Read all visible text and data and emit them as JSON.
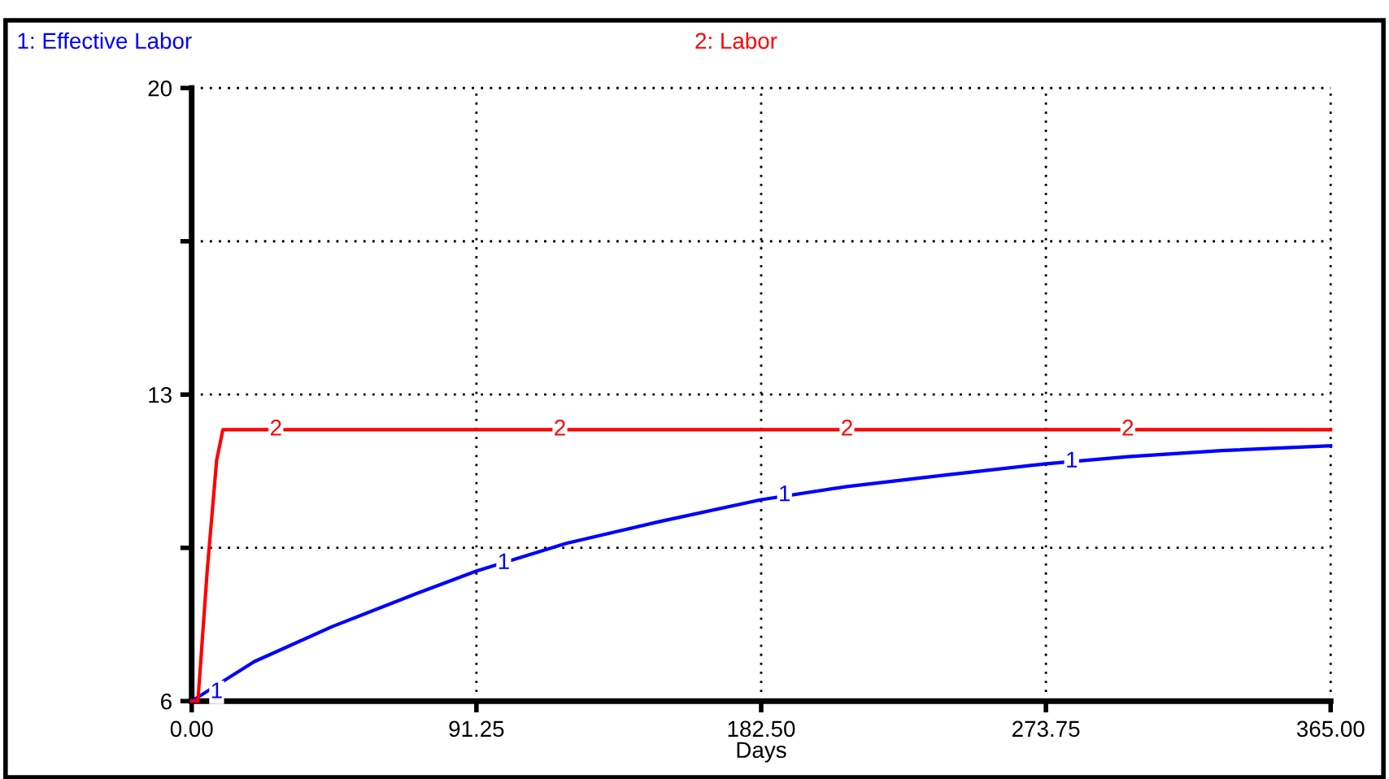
{
  "chart_data": {
    "type": "line",
    "xlabel": "Days",
    "series": [
      {
        "name": "1: Effective Labor",
        "color": "#0000ff",
        "x": [
          0,
          20,
          45,
          70,
          91.25,
          120,
          150,
          182.5,
          210,
          240,
          273.75,
          300,
          330,
          365
        ],
        "values": [
          6.0,
          6.9,
          7.7,
          8.4,
          8.97,
          9.6,
          10.1,
          10.6,
          10.9,
          11.15,
          11.42,
          11.58,
          11.72,
          11.83
        ]
      },
      {
        "name": "2: Labor",
        "color": "#ff0000",
        "x": [
          0,
          2,
          5,
          8,
          10,
          365
        ],
        "values": [
          6,
          6,
          9,
          11.5,
          12.2,
          12.2
        ]
      }
    ],
    "annotations": [
      {
        "text": "1",
        "x": 8,
        "y": 6.2
      },
      {
        "text": "1",
        "x": 100,
        "y": 9.15
      },
      {
        "text": "1",
        "x": 190,
        "y": 10.7
      },
      {
        "text": "1",
        "x": 282,
        "y": 11.47
      },
      {
        "text": "2",
        "x": 27,
        "y": 12.2
      },
      {
        "text": "2",
        "x": 118,
        "y": 12.2
      },
      {
        "text": "2",
        "x": 210,
        "y": 12.2
      },
      {
        "text": "2",
        "x": 300,
        "y": 12.2
      }
    ],
    "xlim": [
      0,
      365
    ],
    "ylim": [
      6,
      20
    ],
    "xticks": [
      {
        "value": 0,
        "label": "0.00"
      },
      {
        "value": 91.25,
        "label": "91.25"
      },
      {
        "value": 182.5,
        "label": "182.50"
      },
      {
        "value": 273.75,
        "label": "273.75"
      },
      {
        "value": 365,
        "label": "365.00"
      }
    ],
    "yticks": [
      6,
      {
        "value": 9.5,
        "label": null
      },
      13,
      {
        "value": 16.5,
        "label": null
      },
      20
    ],
    "grid": true,
    "legend": "top",
    "marker": "none",
    "line_style": "solid"
  }
}
